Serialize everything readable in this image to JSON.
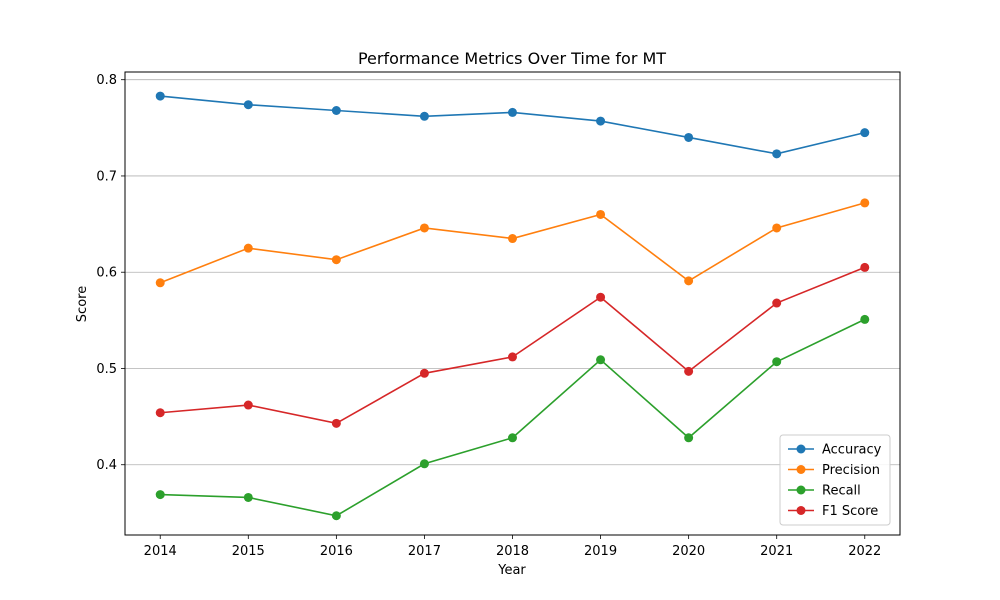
{
  "chart_data": {
    "type": "line",
    "title": "Performance Metrics Over Time for MT",
    "xlabel": "Year",
    "ylabel": "Score",
    "x": [
      "2014",
      "2015",
      "2016",
      "2017",
      "2018",
      "2019",
      "2020",
      "2021",
      "2022"
    ],
    "xlim": [
      -0.4,
      8.4
    ],
    "ylim": [
      0.327,
      0.808
    ],
    "yticks": [
      0.4,
      0.5,
      0.6,
      0.7,
      0.8
    ],
    "yticklabels": [
      "0.4",
      "0.5",
      "0.6",
      "0.7",
      "0.8"
    ],
    "grid": "y",
    "legend_position": "lower-right",
    "series": [
      {
        "name": "Accuracy",
        "color": "#1f77b4",
        "values": [
          0.783,
          0.774,
          0.768,
          0.762,
          0.766,
          0.757,
          0.74,
          0.723,
          0.745
        ]
      },
      {
        "name": "Precision",
        "color": "#ff7f0e",
        "values": [
          0.589,
          0.625,
          0.613,
          0.646,
          0.635,
          0.66,
          0.591,
          0.646,
          0.672
        ]
      },
      {
        "name": "Recall",
        "color": "#2ca02c",
        "values": [
          0.369,
          0.366,
          0.347,
          0.401,
          0.428,
          0.509,
          0.428,
          0.507,
          0.551
        ]
      },
      {
        "name": "F1 Score",
        "color": "#d62728",
        "values": [
          0.454,
          0.462,
          0.443,
          0.495,
          0.512,
          0.574,
          0.497,
          0.568,
          0.605
        ]
      }
    ]
  }
}
